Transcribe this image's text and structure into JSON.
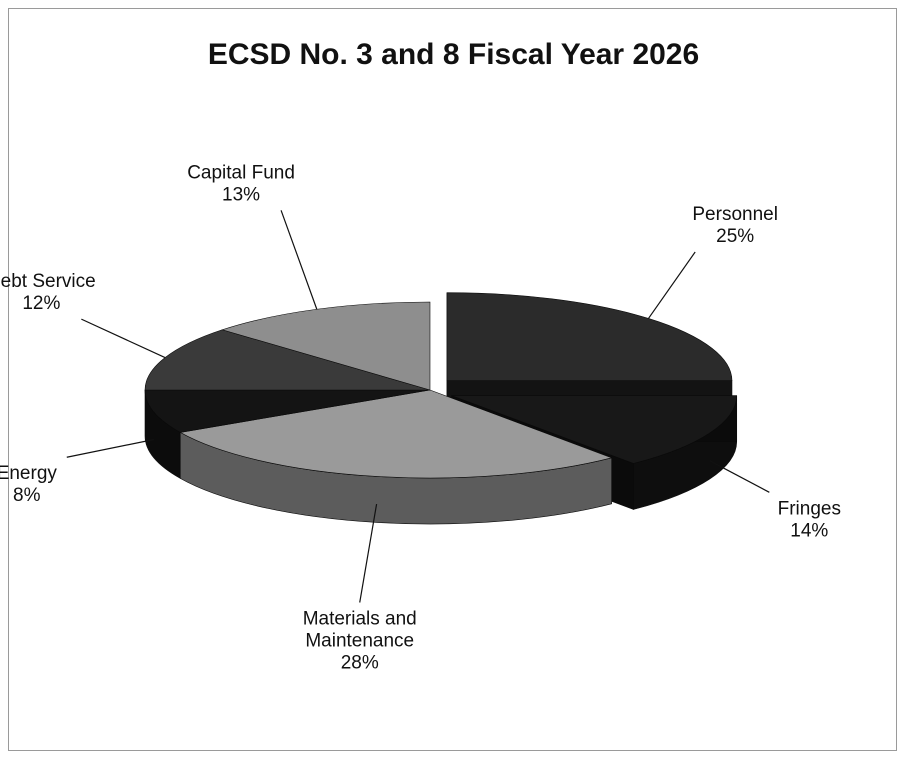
{
  "chart_data": {
    "type": "pie",
    "title": "ECSD No. 3 and 8 Fiscal Year 2026",
    "slices": [
      {
        "label": "Personnel",
        "value": 25,
        "pct_label": "25%",
        "color": "#2b2b2b",
        "exploded": true
      },
      {
        "label": "Fringes",
        "value": 14,
        "pct_label": "14%",
        "color": "#181818",
        "exploded": true
      },
      {
        "label": "Materials and Maintenance",
        "value": 28,
        "pct_label": "28%",
        "color": "#9a9a9a",
        "exploded": false
      },
      {
        "label": "Energy",
        "value": 8,
        "pct_label": "8%",
        "color": "#141414",
        "exploded": false
      },
      {
        "label": "Debt Service",
        "value": 12,
        "pct_label": "12%",
        "color": "#3a3a3a",
        "exploded": false
      },
      {
        "label": "Capital Fund",
        "value": 13,
        "pct_label": "13%",
        "color": "#8e8e8e",
        "exploded": false
      }
    ],
    "style": "3d-exploded",
    "legend": "none",
    "data_labels": "category and percentage"
  }
}
